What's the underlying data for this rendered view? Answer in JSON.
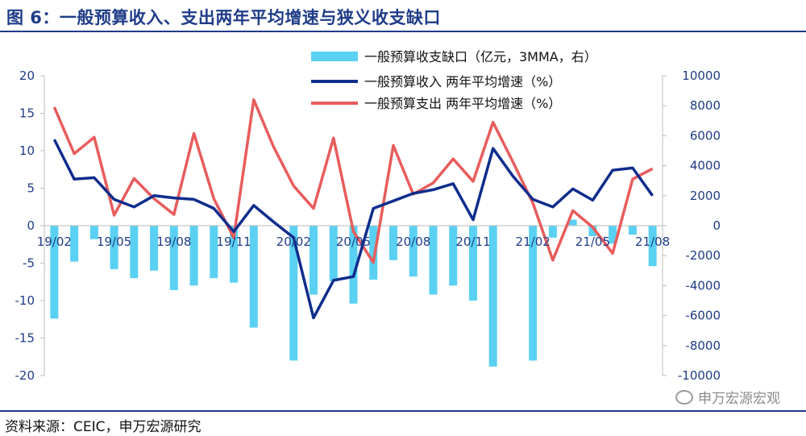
{
  "header": {
    "title": "图 6：一般预算收入、支出两年平均增速与狭义收支缺口"
  },
  "footer": {
    "source": "资料来源：CEIC，申万宏源研究",
    "watermark": "申万宏源宏观"
  },
  "colors": {
    "bar": "#5ad1f2",
    "revenue": "#0f2d8c",
    "expenditure": "#e85c5c",
    "axis": "#1f3c88"
  },
  "chart_data": {
    "type": "bar+line",
    "title": "一般预算收入、支出两年平均增速与狭义收支缺口",
    "categories": [
      "19/02",
      "19/03",
      "19/04",
      "19/05",
      "19/06",
      "19/07",
      "19/08",
      "19/09",
      "19/10",
      "19/11",
      "19/12",
      "20/01",
      "20/02",
      "20/03",
      "20/04",
      "20/05",
      "20/06",
      "20/07",
      "20/08",
      "20/09",
      "20/10",
      "20/11",
      "20/12",
      "21/01",
      "21/02",
      "21/03",
      "21/04",
      "21/05",
      "21/06",
      "21/07",
      "21/08"
    ],
    "x_tick_labels": [
      "19/02",
      "19/05",
      "19/08",
      "19/11",
      "20/02",
      "20/05",
      "20/08",
      "20/11",
      "21/02",
      "21/05",
      "21/08"
    ],
    "x_tick_every": 3,
    "y_left": {
      "min": -20,
      "max": 20,
      "ticks": [
        "20",
        "15",
        "10",
        "5",
        "0",
        "-5",
        "-10",
        "-15",
        "-20"
      ]
    },
    "y_right": {
      "min": -10000,
      "max": 10000,
      "ticks": [
        "10000",
        "8000",
        "6000",
        "4000",
        "2000",
        "0",
        "-2000",
        "-4000",
        "-6000",
        "-8000",
        "-10000"
      ]
    },
    "series": [
      {
        "name": "一般预算收支缺口（亿元，3MMA，右）",
        "type": "bar",
        "axis": "right",
        "values": [
          -6200,
          -2400,
          -900,
          -2900,
          -3500,
          -3000,
          -4300,
          -4000,
          -3500,
          -3800,
          -6800,
          null,
          -9000,
          -4600,
          -3700,
          -5200,
          -3600,
          -2300,
          -3400,
          -4600,
          -4000,
          -5000,
          -9400,
          null,
          -9000,
          -800,
          400,
          -700,
          -1200,
          -600,
          -2700
        ]
      },
      {
        "name": "一般预算收入 两年平均增速（%）",
        "type": "line",
        "axis": "left",
        "values": [
          11.5,
          6.2,
          6.4,
          3.5,
          2.5,
          4.0,
          3.7,
          3.5,
          2.3,
          -0.8,
          2.7,
          0.5,
          -1.6,
          -12.3,
          -7.3,
          -6.8,
          2.3,
          3.3,
          4.3,
          4.8,
          5.6,
          0.8,
          10.3,
          6.6,
          3.5,
          2.5,
          4.9,
          3.4,
          7.4,
          7.7,
          4.0
        ]
      },
      {
        "name": "一般预算支出 两年平均增速（%）",
        "type": "line",
        "axis": "left",
        "values": [
          15.8,
          9.6,
          11.8,
          1.4,
          6.3,
          3.6,
          1.5,
          12.3,
          3.6,
          -1.6,
          16.8,
          10.5,
          5.3,
          2.3,
          11.7,
          -0.8,
          -4.9,
          10.7,
          4.2,
          5.7,
          8.9,
          5.9,
          13.8,
          8.5,
          3.0,
          -4.6,
          2.0,
          -0.2,
          -3.7,
          6.2,
          7.6
        ]
      }
    ]
  }
}
